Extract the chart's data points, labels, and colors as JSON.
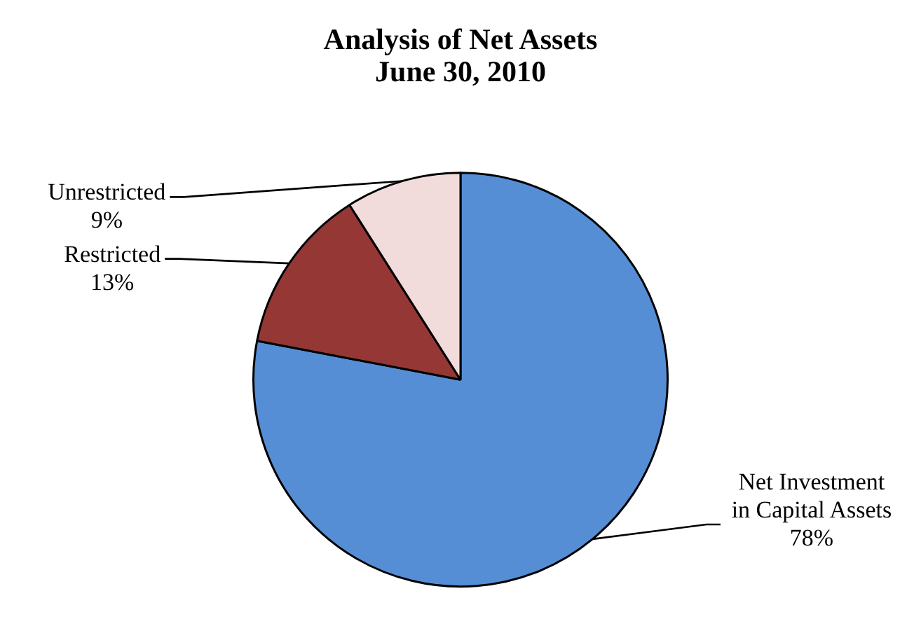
{
  "chart_data": {
    "type": "pie",
    "title": "Analysis of Net Assets\nJune 30, 2010",
    "categories": [
      "Net Investment in Capital Assets",
      "Restricted",
      "Unrestricted"
    ],
    "values": [
      78,
      13,
      9
    ],
    "colors": [
      "#558ed5",
      "#953735",
      "#f2dcdb"
    ],
    "value_labels": [
      "78%",
      "13%",
      "9%"
    ],
    "legend": false
  }
}
